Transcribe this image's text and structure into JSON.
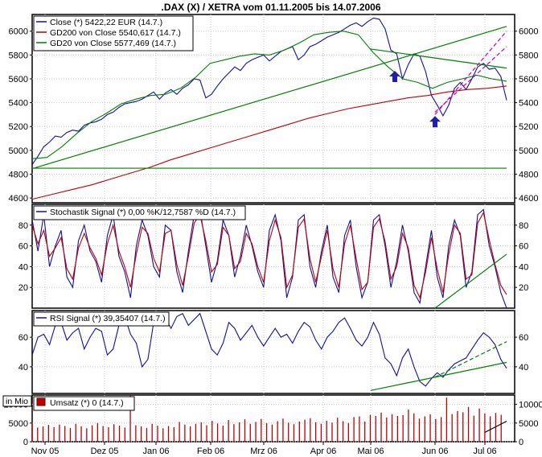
{
  "chart_data": [
    {
      "type": "line",
      "title": ".DAX (X) / XETRA vom 01.11.2005 bis 14.07.2006",
      "y_ticks": [
        4600,
        4800,
        5000,
        5200,
        5400,
        5600,
        5800,
        6000
      ],
      "ylim": [
        4560,
        6140
      ],
      "x_ticks": [
        "Nov 05",
        "Dez 05",
        "Jan 06",
        "Feb 06",
        "Mrz 06",
        "Apr 06",
        "Mai 06",
        "Jun 06",
        "Jul 06"
      ],
      "series": [
        {
          "name": "Close (*) 5422,22 EUR (14.7.)",
          "color": "#1010a0",
          "values": [
            4880,
            4950,
            5030,
            5070,
            5120,
            5110,
            5150,
            5170,
            5160,
            5210,
            5230,
            5240,
            5260,
            5300,
            5320,
            5360,
            5390,
            5400,
            5410,
            5430,
            5460,
            5490,
            5430,
            5480,
            5510,
            5470,
            5520,
            5550,
            5600,
            5590,
            5440,
            5470,
            5540,
            5600,
            5650,
            5700,
            5670,
            5730,
            5760,
            5780,
            5800,
            5750,
            5790,
            5830,
            5850,
            5870,
            5760,
            5800,
            5870,
            5890,
            5920,
            5950,
            5970,
            5990,
            6020,
            6050,
            6070,
            6040,
            6080,
            6110,
            6100,
            6020,
            5840,
            5810,
            5600,
            5720,
            5810,
            5790,
            5660,
            5460,
            5380,
            5290,
            5380,
            5520,
            5570,
            5510,
            5600,
            5700,
            5730,
            5680,
            5690,
            5620,
            5420
          ]
        },
        {
          "name": "GD200 von Close 5540,617 (14.7.)",
          "color": "#c00000",
          "values": [
            4590,
            4630,
            4670,
            4710,
            4760,
            4810,
            4860,
            4920,
            4970,
            5020,
            5070,
            5120,
            5170,
            5220,
            5270,
            5310,
            5350,
            5380,
            5410,
            5440,
            5460,
            5490,
            5510,
            5520,
            5540
          ]
        },
        {
          "name": "GD20 von Close 5577,469 (14.7.)",
          "color": "#008000",
          "values": [
            4930,
            4940,
            5030,
            5140,
            5240,
            5310,
            5390,
            5430,
            5460,
            5470,
            5520,
            5610,
            5730,
            5760,
            5790,
            5810,
            5800,
            5840,
            5900,
            5970,
            5990,
            6000,
            5970,
            5820,
            5700,
            5600,
            5570,
            5520,
            5570,
            5600,
            5630,
            5600,
            5580
          ]
        }
      ],
      "annotations": [
        {
          "type": "horizontal-line",
          "y": 4850,
          "color": "#008000"
        },
        {
          "type": "trend-line",
          "color": "#008000",
          "from": {
            "x": "01.11.2005",
            "y": 4850
          },
          "to": {
            "x": "14.07.2006",
            "y": 6040
          }
        },
        {
          "type": "trend-line",
          "color": "#008000",
          "from": {
            "x": "Mai 06",
            "y": 5850
          },
          "to": {
            "x": "14.07.2006",
            "y": 5690
          }
        },
        {
          "type": "trend-line",
          "color": "#c000c0",
          "dashed": true,
          "from": {
            "x": "Jun 06",
            "y": 5300
          },
          "to": {
            "x": "14.07.2006",
            "y": 6000
          }
        },
        {
          "type": "trend-line",
          "color": "#c000c0",
          "dashed": true,
          "from": {
            "x": "Jun 06",
            "y": 5320
          },
          "to": {
            "x": "14.07.2006",
            "y": 5870
          }
        },
        {
          "type": "arrow",
          "direction": "up",
          "color": "#2020a0",
          "at": {
            "x": "Mai 06",
            "y": 5620
          }
        },
        {
          "type": "arrow",
          "direction": "up",
          "color": "#2020a0",
          "at": {
            "x": "Jun 06",
            "y": 5240
          }
        }
      ]
    },
    {
      "type": "line",
      "y_ticks": [
        20,
        40,
        60,
        80
      ],
      "ylim": [
        0,
        100
      ],
      "series": [
        {
          "name": "Stochastik Signal (*) 0,00 %K/12,7587 %D (14.7.)",
          "color": "#1010a0",
          "values": [
            85,
            55,
            90,
            40,
            60,
            75,
            30,
            20,
            65,
            80,
            55,
            45,
            25,
            70,
            90,
            50,
            35,
            10,
            60,
            85,
            70,
            40,
            30,
            80,
            75,
            35,
            15,
            55,
            90,
            95,
            60,
            25,
            45,
            85,
            70,
            30,
            50,
            80,
            60,
            35,
            20,
            75,
            90,
            65,
            10,
            30,
            85,
            90,
            40,
            20,
            55,
            80,
            30,
            15,
            70,
            85,
            40,
            10,
            25,
            85,
            90,
            60,
            20,
            45,
            80,
            55,
            15,
            5,
            40,
            75,
            30,
            10,
            60,
            85,
            70,
            20,
            35,
            90,
            95,
            60,
            40,
            15,
            0
          ]
        },
        {
          "name": "%D",
          "color": "#c00000",
          "values": [
            80,
            62,
            75,
            50,
            58,
            68,
            38,
            28,
            58,
            72,
            58,
            48,
            32,
            62,
            80,
            55,
            40,
            20,
            52,
            78,
            72,
            48,
            35,
            72,
            75,
            42,
            22,
            50,
            82,
            90,
            65,
            35,
            42,
            78,
            70,
            38,
            45,
            72,
            62,
            40,
            25,
            65,
            85,
            68,
            20,
            32,
            78,
            86,
            48,
            25,
            50,
            75,
            38,
            20,
            62,
            80,
            48,
            18,
            25,
            78,
            86,
            64,
            28,
            40,
            72,
            58,
            22,
            10,
            35,
            68,
            38,
            15,
            52,
            80,
            72,
            28,
            32,
            82,
            92,
            66,
            42,
            22,
            13
          ]
        }
      ],
      "annotations": [
        {
          "type": "trend-line",
          "color": "#008000",
          "from": {
            "x": "Jun 06",
            "y": 0
          },
          "to": {
            "x": "14.07.2006",
            "y": 52
          }
        }
      ]
    },
    {
      "type": "line",
      "y_ticks": [
        40,
        60
      ],
      "ylim": [
        22,
        78
      ],
      "series": [
        {
          "name": "RSI Signal (*) 39,35407 (14.7.)",
          "color": "#1010a0",
          "values": [
            48,
            60,
            62,
            55,
            68,
            70,
            58,
            63,
            66,
            52,
            60,
            66,
            64,
            48,
            52,
            68,
            74,
            62,
            56,
            40,
            45,
            70,
            68,
            73,
            66,
            74,
            76,
            68,
            72,
            76,
            64,
            52,
            48,
            56,
            70,
            66,
            58,
            63,
            68,
            60,
            54,
            60,
            66,
            60,
            62,
            56,
            64,
            70,
            67,
            58,
            52,
            60,
            64,
            70,
            73,
            66,
            58,
            54,
            60,
            70,
            62,
            46,
            42,
            34,
            46,
            52,
            40,
            30,
            27,
            32,
            36,
            33,
            38,
            42,
            44,
            46,
            52,
            58,
            63,
            60,
            55,
            45,
            39
          ]
        }
      ],
      "annotations": [
        {
          "type": "trend-line",
          "color": "#008000",
          "from": {
            "x": "Mai 06",
            "y": 24
          },
          "to": {
            "x": "14.07.2006",
            "y": 43
          }
        },
        {
          "type": "trend-line",
          "color": "#008000",
          "dashed": true,
          "from": {
            "x": "Jun 06",
            "y": 33
          },
          "to": {
            "x": "14.07.2006",
            "y": 57
          }
        }
      ]
    },
    {
      "type": "bar",
      "y_label": "in Mio",
      "y_ticks": [
        0,
        5000,
        10000
      ],
      "ylim": [
        0,
        12500
      ],
      "series": [
        {
          "name": "Umsatz (*) 0 (14.7.)",
          "color": "#c00000",
          "values": [
            5200,
            3800,
            4100,
            4500,
            3900,
            4600,
            4200,
            3700,
            4800,
            4100,
            3600,
            4400,
            5000,
            4200,
            3900,
            4700,
            4300,
            3800,
            12500,
            4400,
            4100,
            3700,
            4800,
            4300,
            3600,
            4200,
            3900,
            5300,
            4600,
            4100,
            4800,
            5200,
            4400,
            5600,
            4900,
            4300,
            5800,
            4700,
            5200,
            6000,
            4800,
            5300,
            6100,
            5000,
            4600,
            5500,
            6200,
            5100,
            4700,
            5400,
            5900,
            6300,
            5200,
            4800,
            5600,
            5100,
            6400,
            5500,
            5000,
            6600,
            6800,
            5400,
            7200,
            6900,
            7800,
            6500,
            7400,
            6900,
            7100,
            8600,
            7600,
            6200,
            6800,
            7300,
            6100,
            6600,
            11800,
            7400,
            8200,
            7900,
            9300,
            7000,
            8900,
            7600,
            6800,
            7700,
            7200,
            0
          ]
        }
      ],
      "annotations": [
        {
          "type": "trend-line",
          "color": "#000000",
          "from": {
            "x": "Jul 06",
            "y": 2500
          },
          "to": {
            "x": "14.07.2006",
            "y": 5500
          }
        }
      ]
    }
  ]
}
